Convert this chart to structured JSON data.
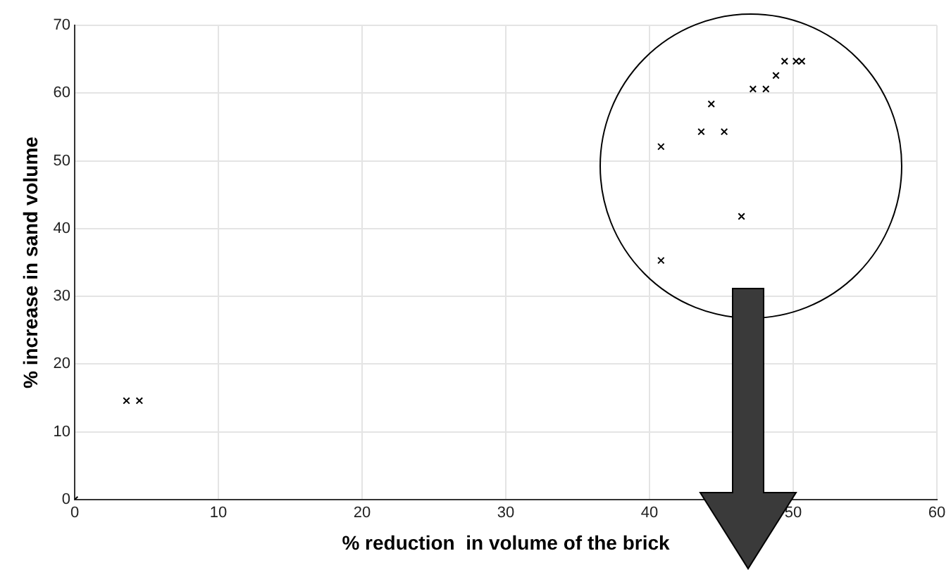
{
  "chart_data": {
    "type": "scatter",
    "xlabel": "% reduction  in volume of the brick",
    "ylabel": "% increase in sand volume",
    "x": [
      0,
      3.6,
      4.5,
      40.8,
      40.8,
      43.6,
      44.3,
      45.2,
      46.4,
      47.2,
      48.1,
      48.8,
      49.4,
      50.2,
      50.6
    ],
    "series": [
      {
        "color": "#000000",
        "values": [
          0,
          14.6,
          14.6,
          35.3,
          52.1,
          54.3,
          58.4,
          54.3,
          41.8,
          60.6,
          60.6,
          62.6,
          64.7,
          64.7,
          64.7
        ]
      }
    ],
    "xlim": [
      0,
      60
    ],
    "xticks": [
      0,
      10,
      20,
      30,
      40,
      50,
      60
    ],
    "ylim": [
      0,
      70
    ],
    "yticks": [
      0,
      10,
      20,
      30,
      40,
      50,
      60,
      70
    ],
    "grid": true,
    "legend": false,
    "marker": "cross"
  }
}
